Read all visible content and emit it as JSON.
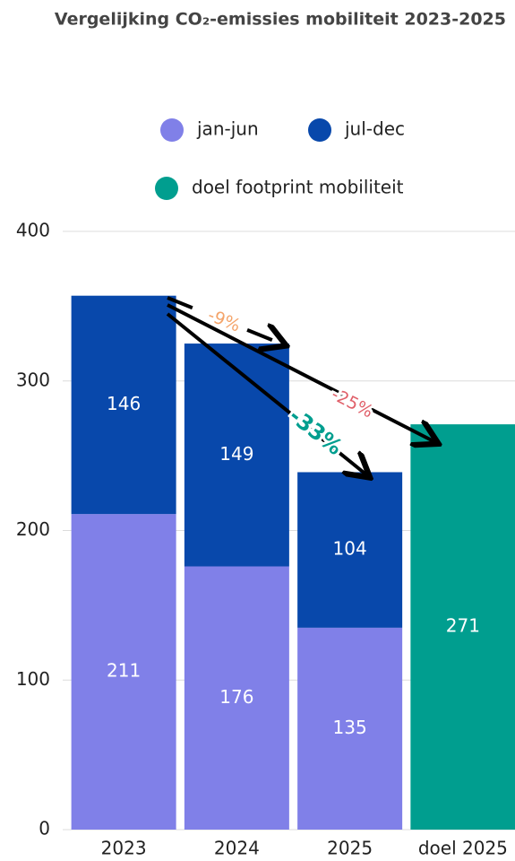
{
  "chart_data": {
    "type": "stacked-bar",
    "title": "Vergelijking CO₂-emissies mobiliteit 2023-2025",
    "categories": [
      "2023",
      "2024",
      "2025",
      "doel 2025"
    ],
    "series": [
      {
        "name": "jan-jun",
        "color": "#8080e8",
        "values": [
          211,
          176,
          135,
          null
        ]
      },
      {
        "name": "jul-dec",
        "color": "#0848ab",
        "values": [
          146,
          149,
          104,
          null
        ]
      },
      {
        "name": "doel footprint mobiliteit",
        "color": "#009e8f",
        "values": [
          null,
          null,
          null,
          271
        ]
      }
    ],
    "annotations": [
      {
        "text": "-9%",
        "color": "#f4a46a"
      },
      {
        "text": "-25%",
        "color": "#e0606a"
      },
      {
        "text": "-33%",
        "color": "#009e8f"
      }
    ],
    "ylim": [
      0,
      400
    ],
    "yticks": [
      0,
      100,
      200,
      300,
      400
    ],
    "grid": true
  }
}
